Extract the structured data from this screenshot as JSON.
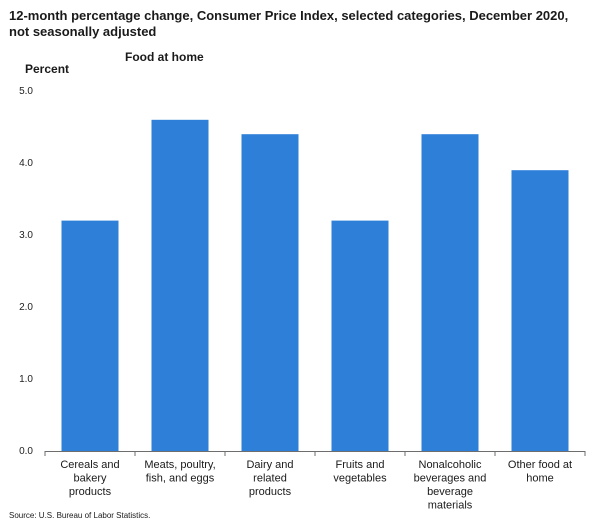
{
  "chart_data": {
    "type": "bar",
    "title": "12-month percentage change, Consumer Price Index, selected categories, December 2020, not seasonally adjusted",
    "subtitle": "Food at home",
    "ylabel": "Percent",
    "xlabel": "",
    "ylim": [
      0,
      5
    ],
    "yticks": [
      "0.0",
      "1.0",
      "2.0",
      "3.0",
      "4.0",
      "5.0"
    ],
    "grid": false,
    "bar_color": "#2e7fd8",
    "categories": [
      [
        "Cereals and",
        "bakery",
        "products"
      ],
      [
        "Meats, poultry,",
        "fish, and eggs"
      ],
      [
        "Dairy and",
        "related",
        "products"
      ],
      [
        "Fruits and",
        "vegetables"
      ],
      [
        "Nonalcoholic",
        "beverages and",
        "beverage",
        "materials"
      ],
      [
        "Other food at",
        "home"
      ]
    ],
    "values": [
      3.2,
      4.6,
      4.4,
      3.2,
      4.4,
      3.9
    ]
  },
  "source": "Source: U.S. Bureau of Labor Statistics."
}
